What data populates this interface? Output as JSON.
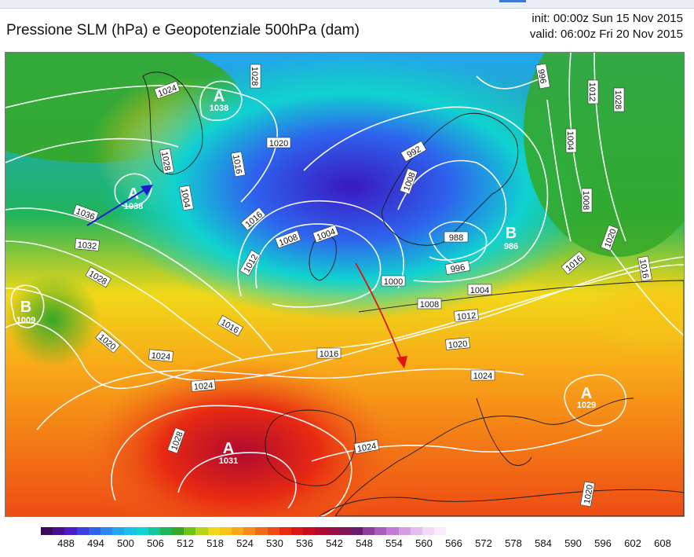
{
  "title": "Pressione SLM (hPa) e Geopotenziale 500hPa (dam)",
  "init": "init: 00:00z Sun 15 Nov 2015",
  "valid": "valid: 06:00z Fri 20 Nov 2015",
  "contour_labels": [
    "1024",
    "1028",
    "1036",
    "1032",
    "1028",
    "1020",
    "1024",
    "1028",
    "1020",
    "1016",
    "1012",
    "1008",
    "1004",
    "1000",
    "996",
    "988",
    "992",
    "1004",
    "1008",
    "1012",
    "1016",
    "1020",
    "1024",
    "1016",
    "1016",
    "1020",
    "1024",
    "1028",
    "1024",
    "1016",
    "1012",
    "1008",
    "1004",
    "996",
    "1028",
    "1016",
    "1008",
    "1004",
    "1020"
  ],
  "pressure_centers": [
    {
      "letter": "A",
      "value": "1038"
    },
    {
      "letter": "A",
      "value": "1038"
    },
    {
      "letter": "B",
      "value": "1009"
    },
    {
      "letter": "B",
      "value": "986"
    },
    {
      "letter": "A",
      "value": "1031"
    },
    {
      "letter": "A",
      "value": "1029"
    }
  ],
  "colorbar": {
    "labels": [
      "488",
      "494",
      "500",
      "506",
      "512",
      "518",
      "524",
      "530",
      "536",
      "542",
      "548",
      "554",
      "560",
      "566",
      "572",
      "578",
      "584",
      "590",
      "596",
      "602",
      "608"
    ],
    "colors": [
      "#3a0a5a",
      "#4a0e8c",
      "#4b1bc4",
      "#3e3fe0",
      "#2e63ee",
      "#2e86f2",
      "#22a6f0",
      "#1ac0e8",
      "#10d2d0",
      "#12c89a",
      "#20b45a",
      "#35a828",
      "#6fc21a",
      "#b8d418",
      "#f0d818",
      "#f8c418",
      "#f8a818",
      "#f88a18",
      "#f06a18",
      "#ee4c14",
      "#e82a12",
      "#dc1414",
      "#c80c1c",
      "#b00a30",
      "#980c48",
      "#801458",
      "#6a1a6a",
      "#8c3c9c",
      "#a85cbc",
      "#c07cd4",
      "#d49ce4",
      "#e4bcf0",
      "#f0d8f8",
      "#f8ecfc",
      "#ffffff",
      "#ffffff",
      "#ffffff",
      "#ffffff",
      "#ffffff",
      "#ffffff",
      "#ffffff",
      "#ffffff",
      "#ffffff",
      "#ffffff",
      "#ffffff",
      "#ffffff",
      "#ffffff",
      "#ffffff",
      "#ffffff",
      "#ffffff",
      "#ffffff"
    ]
  },
  "arrows": [
    {
      "color": "#1a1ad0"
    },
    {
      "color": "#e01414"
    }
  ]
}
